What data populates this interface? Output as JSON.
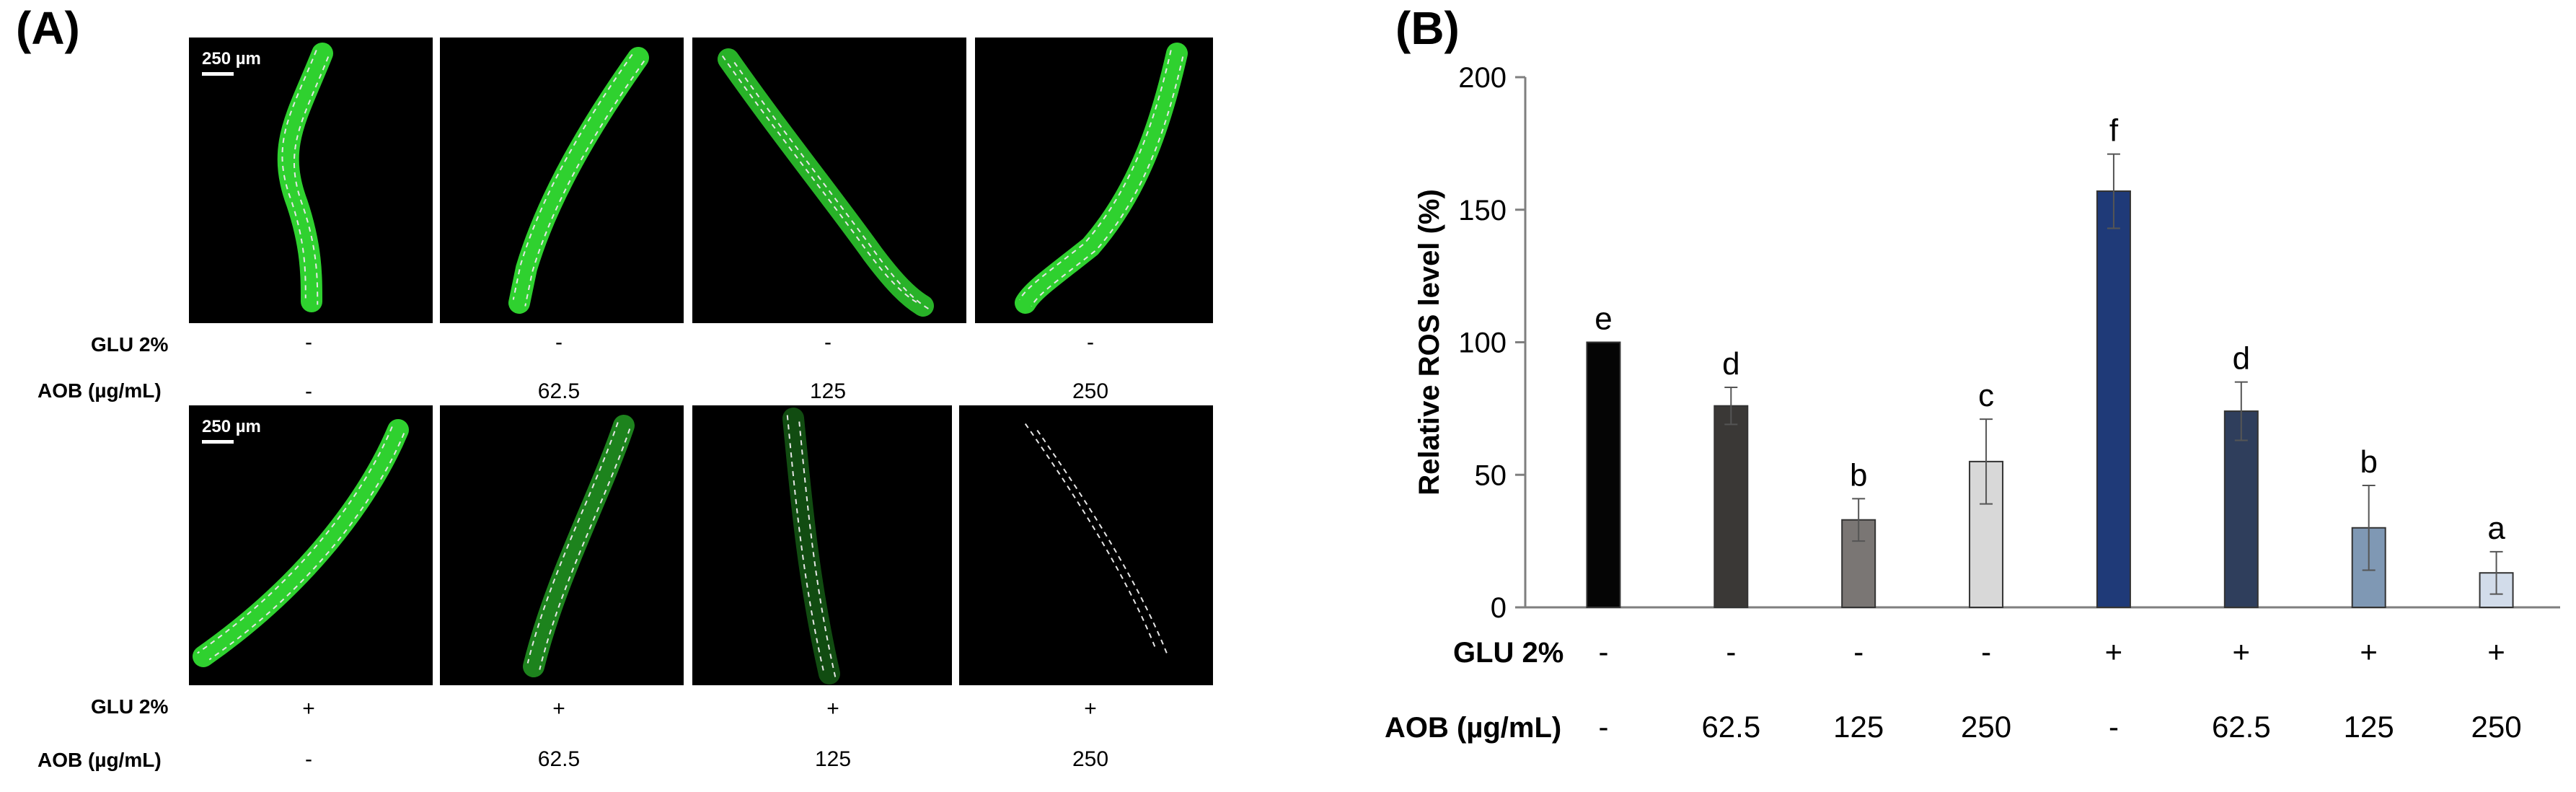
{
  "panel_a": {
    "letter": "(A)",
    "scale_label": "250 µm",
    "row_labels": {
      "glu": "GLU 2%",
      "aob": "AOB (µg/mL)"
    },
    "top_glu": [
      "-",
      "-",
      "-",
      "-"
    ],
    "top_aob": [
      "-",
      "62.5",
      "125",
      "250"
    ],
    "bottom_glu": [
      "+",
      "+",
      "+",
      "+"
    ],
    "bottom_aob": [
      "-",
      "62.5",
      "125",
      "250"
    ],
    "image_colors": {
      "worm_bright": "#2fd12f",
      "worm_dim": "#1f8a1f",
      "outline": "#e6e6e6"
    }
  },
  "panel_b": {
    "letter": "(B)",
    "row_labels": {
      "glu": "GLU 2%",
      "aob": "AOB (µg/mL)"
    }
  },
  "chart_data": {
    "type": "bar",
    "title": "",
    "xlabel": "",
    "ylabel": "Relative ROS level (%)",
    "ylim": [
      0,
      200
    ],
    "yticks": [
      0,
      50,
      100,
      150,
      200
    ],
    "grid": false,
    "categories": [
      {
        "glu": "-",
        "aob": "-"
      },
      {
        "glu": "-",
        "aob": "62.5"
      },
      {
        "glu": "-",
        "aob": "125"
      },
      {
        "glu": "-",
        "aob": "250"
      },
      {
        "glu": "+",
        "aob": "-"
      },
      {
        "glu": "+",
        "aob": "62.5"
      },
      {
        "glu": "+",
        "aob": "125"
      },
      {
        "glu": "+",
        "aob": "250"
      }
    ],
    "values": [
      100,
      76,
      33,
      55,
      157,
      74,
      30,
      13
    ],
    "errors": [
      0,
      7,
      8,
      16,
      14,
      11,
      16,
      8
    ],
    "significance": [
      "e",
      "d",
      "b",
      "c",
      "f",
      "d",
      "b",
      "a"
    ],
    "colors": [
      "#050505",
      "#3a3836",
      "#7a7674",
      "#d8d8d8",
      "#1f3a78",
      "#2f3e5c",
      "#7f98b4",
      "#d2dcea"
    ]
  }
}
